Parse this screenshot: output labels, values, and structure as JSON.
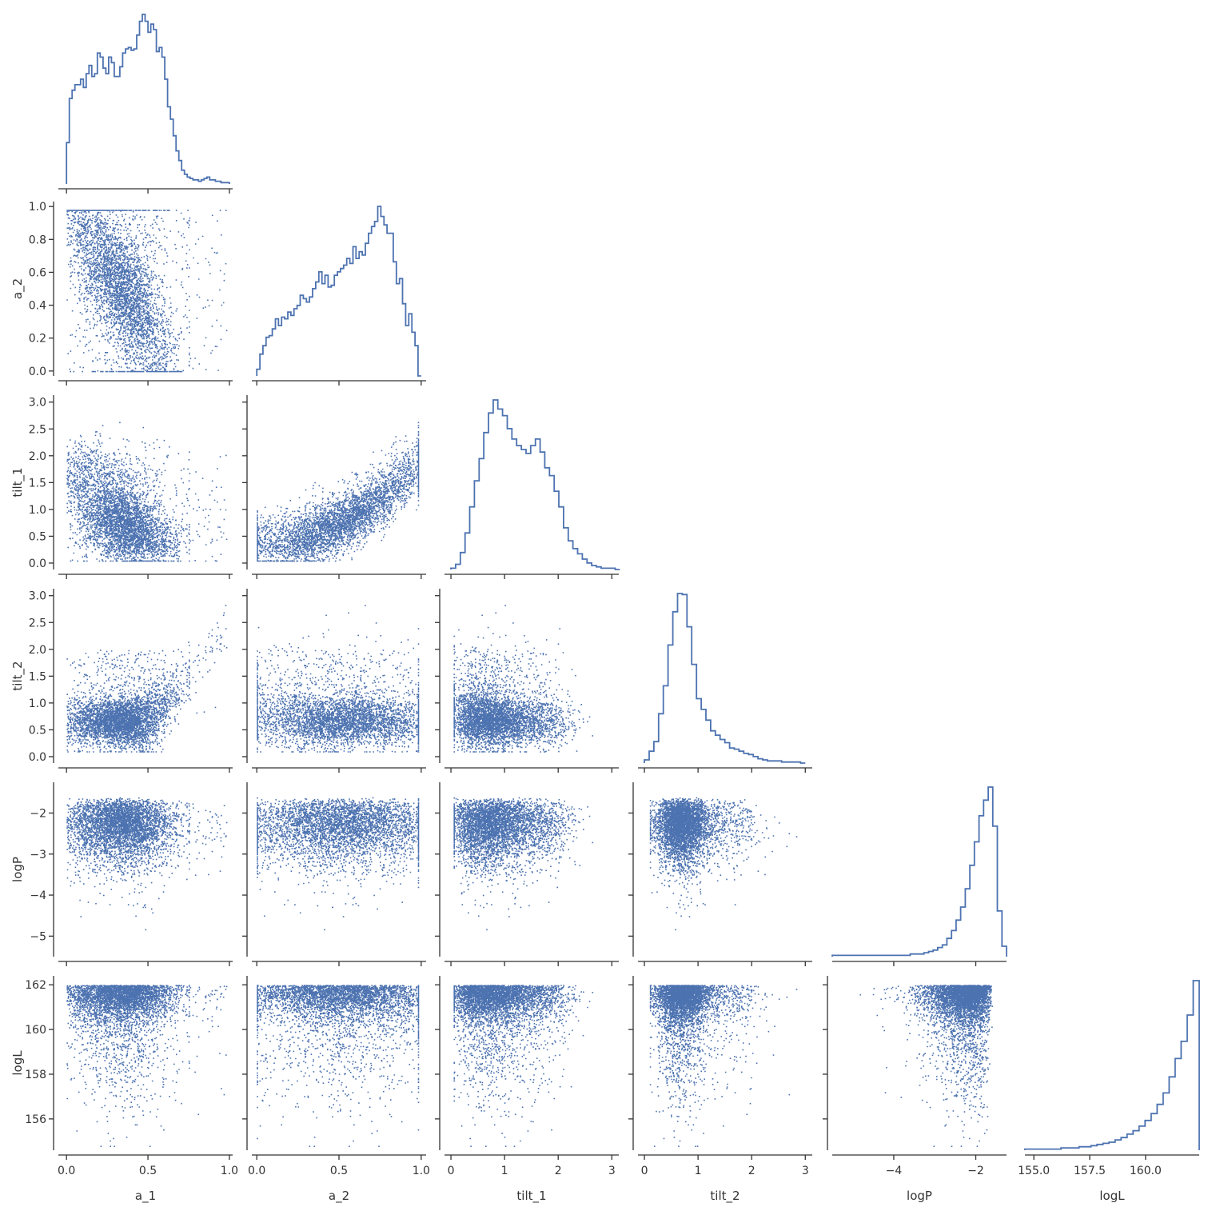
{
  "chart_data": {
    "type": "scatter",
    "subtype": "corner-pairplot",
    "variables": [
      "a_1",
      "a_2",
      "tilt_1",
      "tilt_2",
      "logP",
      "logL"
    ],
    "series_color": "#4c72b0",
    "point_counts_approx": 5000,
    "axes": {
      "a_1": {
        "range": [
          -0.05,
          1.02
        ],
        "ticks": [
          0.0,
          0.5,
          1.0
        ],
        "tick_labels": [
          "0.0",
          "0.5",
          "1.0"
        ]
      },
      "a_2": {
        "range": [
          -0.03,
          1.03
        ],
        "ticks": [
          0.0,
          0.2,
          0.4,
          0.6,
          0.8,
          1.0
        ],
        "tick_labels": [
          "0.0",
          "0.2",
          "0.4",
          "0.6",
          "0.8",
          "1.0"
        ],
        "x_ticks": [
          0.0,
          0.5,
          1.0
        ],
        "x_tick_labels": [
          "0.0",
          "0.5",
          "1.0"
        ]
      },
      "tilt_1": {
        "range": [
          -0.12,
          3.13
        ],
        "ticks": [
          0.0,
          0.5,
          1.0,
          1.5,
          2.0,
          2.5,
          3.0
        ],
        "tick_labels": [
          "0.0",
          "0.5",
          "1.0",
          "1.5",
          "2.0",
          "2.5",
          "3.0"
        ],
        "x_ticks": [
          0,
          1,
          2,
          3
        ],
        "x_tick_labels": [
          "0",
          "1",
          "2",
          "3"
        ]
      },
      "tilt_2": {
        "range": [
          -0.12,
          3.13
        ],
        "ticks": [
          0.0,
          0.5,
          1.0,
          1.5,
          2.0,
          2.5,
          3.0
        ],
        "tick_labels": [
          "0.0",
          "0.5",
          "1.0",
          "1.5",
          "2.0",
          "2.5",
          "3.0"
        ],
        "x_ticks": [
          0,
          1,
          2,
          3
        ],
        "x_tick_labels": [
          "0",
          "1",
          "2",
          "3"
        ]
      },
      "logP": {
        "range": [
          -5.5,
          -1.25
        ],
        "ticks": [
          -2,
          -3,
          -4,
          -5
        ],
        "tick_labels": [
          "−2",
          "−3",
          "−4",
          "−5"
        ],
        "x_ticks": [
          -4,
          -2
        ],
        "x_tick_labels": [
          "−4",
          "−2"
        ]
      },
      "logL": {
        "range": [
          154.6,
          162.4
        ],
        "ticks": [
          162,
          160,
          158,
          156
        ],
        "tick_labels": [
          "162",
          "160",
          "158",
          "156"
        ],
        "x_ticks": [
          155.0,
          157.5,
          160.0
        ],
        "x_tick_labels": [
          "155.0",
          "157.5",
          "160.0"
        ]
      }
    },
    "histograms": {
      "a_1": {
        "bins": [
          0.0,
          1.0
        ],
        "counts": [
          30,
          62,
          68,
          72,
          72,
          76,
          70,
          80,
          86,
          78,
          80,
          95,
          92,
          84,
          80,
          92,
          88,
          78,
          78,
          85,
          95,
          98,
          99,
          97,
          98,
          108,
          118,
          123,
          118,
          110,
          116,
          112,
          96,
          99,
          92,
          76,
          56,
          47,
          35,
          24,
          17,
          10,
          7,
          5,
          4,
          3,
          3,
          2,
          3,
          4,
          5,
          3,
          3,
          2,
          2,
          1,
          1,
          1
        ]
      },
      "a_2": {
        "bins": [
          0.0,
          1.0
        ],
        "counts": [
          4,
          13,
          18,
          23,
          24,
          28,
          34,
          30,
          35,
          34,
          38,
          36,
          40,
          42,
          48,
          46,
          44,
          47,
          52,
          56,
          62,
          55,
          60,
          53,
          54,
          60,
          62,
          64,
          66,
          70,
          67,
          77,
          70,
          74,
          72,
          79,
          85,
          89,
          92,
          101,
          95,
          90,
          85,
          85,
          68,
          55,
          58,
          43,
          30,
          37,
          26,
          18,
          0
        ]
      },
      "tilt_1": {
        "bins": [
          0.0,
          3.15
        ],
        "counts": [
          1,
          4,
          13,
          28,
          48,
          68,
          85,
          105,
          120,
          130,
          123,
          118,
          108,
          100,
          95,
          92,
          89,
          95,
          100,
          90,
          78,
          72,
          60,
          48,
          32,
          22,
          16,
          12,
          8,
          5,
          3,
          2,
          1,
          1,
          1,
          0
        ]
      },
      "tilt_2": {
        "bins": [
          0.0,
          3.0
        ],
        "counts": [
          3,
          11,
          20,
          46,
          72,
          110,
          141,
          158,
          157,
          127,
          92,
          60,
          50,
          40,
          30,
          26,
          22,
          19,
          14,
          13,
          11,
          9,
          8,
          6,
          4,
          3,
          2,
          2,
          2,
          1,
          1,
          1,
          1,
          0
        ]
      },
      "logP": {
        "bins": [
          -5.5,
          -1.25
        ],
        "counts": [
          1,
          1,
          1,
          1,
          1,
          1,
          1,
          1,
          1,
          1,
          1,
          1,
          1,
          1,
          1,
          1,
          1,
          2,
          2,
          2,
          3,
          4,
          5,
          7,
          9,
          14,
          20,
          28,
          38,
          52,
          70,
          88,
          108,
          120,
          130,
          100,
          35,
          8
        ]
      },
      "logL": {
        "bins": [
          154.6,
          162.4
        ],
        "counts": [
          1,
          1,
          1,
          1,
          1,
          1,
          2,
          2,
          2,
          3,
          3,
          4,
          5,
          6,
          7,
          9,
          11,
          14,
          17,
          21,
          26,
          32,
          40,
          50,
          64,
          80,
          95,
          118,
          148
        ]
      }
    },
    "xlabels": [
      "a_1",
      "a_2",
      "tilt_1",
      "tilt_2",
      "logP",
      "logL"
    ],
    "ylabels": [
      "a_2",
      "tilt_1",
      "tilt_2",
      "logP",
      "logL"
    ],
    "grid": false,
    "legend": "none"
  }
}
